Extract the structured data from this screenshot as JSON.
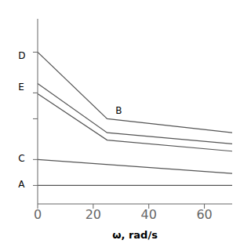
{
  "chart_data": {
    "type": "line",
    "xlabel": "ω, rad/s",
    "color": "#555555",
    "xlim": [
      0,
      70
    ],
    "xticks": [
      0,
      20,
      40,
      60
    ],
    "ylim": [
      0,
      1.0
    ],
    "yticks": [
      0.1,
      0.24,
      0.46,
      0.6,
      0.82
    ],
    "tick_labels": "x",
    "grid": false,
    "series": [
      {
        "x": [
          0,
          70
        ],
        "values": [
          0.1,
          0.1
        ]
      },
      {
        "x": [
          0,
          70
        ],
        "values": [
          0.24,
          0.165
        ]
      },
      {
        "x": [
          0,
          25,
          70
        ],
        "values": [
          0.82,
          0.46,
          0.385
        ]
      },
      {
        "x": [
          0,
          25,
          70
        ],
        "values": [
          0.65,
          0.385,
          0.325
        ]
      },
      {
        "x": [
          0,
          25,
          70
        ],
        "values": [
          0.595,
          0.345,
          0.285
        ]
      }
    ],
    "annotations": [
      {
        "text": "A",
        "x": -7,
        "y": 0.105
      },
      {
        "text": "C",
        "x": -7,
        "y": 0.245
      },
      {
        "text": "D",
        "x": -7,
        "y": 0.8
      },
      {
        "text": "E",
        "x": -7,
        "y": 0.63
      },
      {
        "text": "B",
        "x": 28,
        "y": 0.505
      }
    ]
  }
}
